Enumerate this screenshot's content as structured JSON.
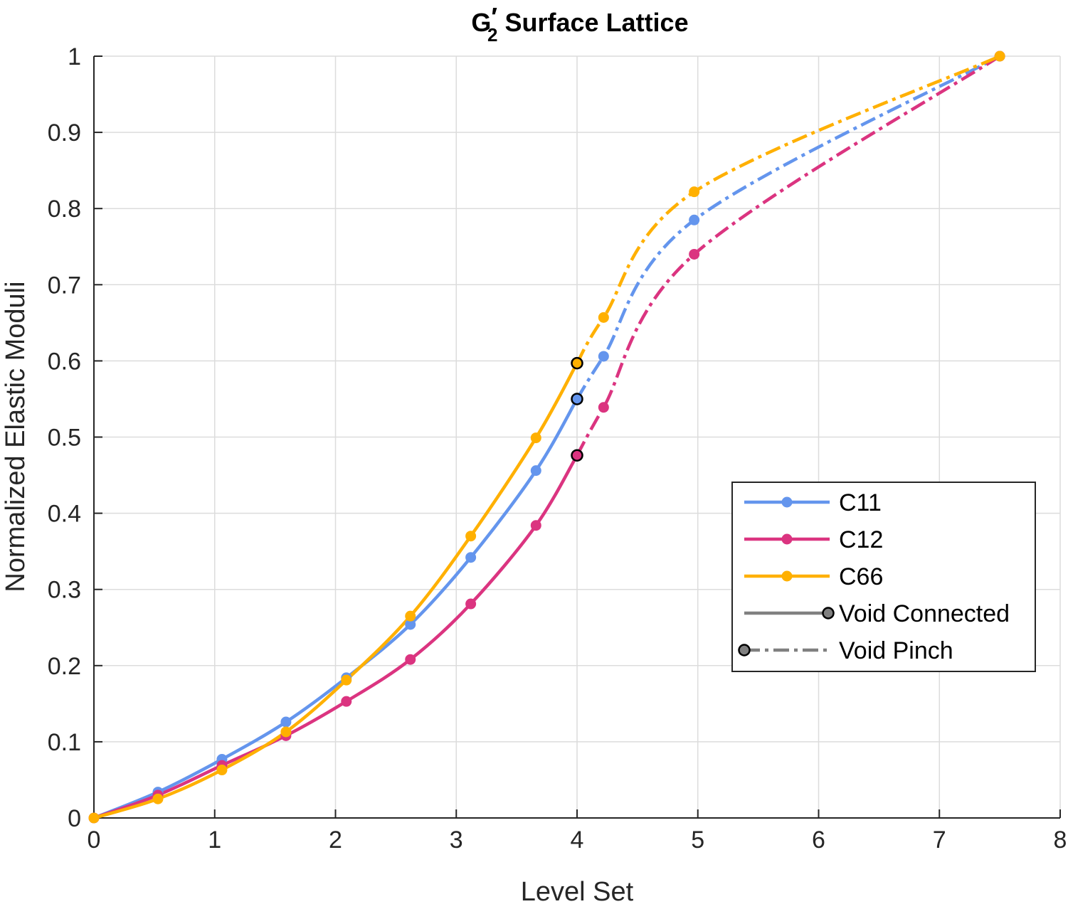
{
  "chart_data": {
    "type": "line",
    "title": {
      "main": "G",
      "prime": "′",
      "subscript": "2",
      "rest": " Surface Lattice"
    },
    "xlabel": "Level Set",
    "ylabel": "Normalized Elastic Moduli",
    "xlim": [
      0,
      8
    ],
    "ylim": [
      0,
      1
    ],
    "xticks": [
      0,
      1,
      2,
      3,
      4,
      5,
      6,
      7,
      8
    ],
    "yticks": [
      0,
      0.1,
      0.2,
      0.3,
      0.4,
      0.5,
      0.6,
      0.7,
      0.8,
      0.9,
      1
    ],
    "xtick_labels": [
      "0",
      "1",
      "2",
      "3",
      "4",
      "5",
      "6",
      "7",
      "8"
    ],
    "ytick_labels": [
      "0",
      "0.1",
      "0.2",
      "0.3",
      "0.4",
      "0.5",
      "0.6",
      "0.7",
      "0.8",
      "0.9",
      "1"
    ],
    "grid": true,
    "legend_position": "right",
    "series": [
      {
        "name": "C11",
        "color": "#6495ED",
        "connected": {
          "x": [
            0,
            0.53,
            1.06,
            1.59,
            2.09,
            2.62,
            3.12,
            3.66,
            4.0
          ],
          "y": [
            0,
            0.034,
            0.077,
            0.126,
            0.184,
            0.254,
            0.342,
            0.456,
            0.55
          ]
        },
        "pinch": {
          "x": [
            4.0,
            4.22,
            4.97,
            7.5
          ],
          "y": [
            0.55,
            0.606,
            0.785,
            1.0
          ]
        }
      },
      {
        "name": "C12",
        "color": "#DB3480",
        "connected": {
          "x": [
            0,
            0.53,
            1.06,
            1.59,
            2.09,
            2.62,
            3.12,
            3.66,
            4.0
          ],
          "y": [
            0,
            0.03,
            0.069,
            0.108,
            0.153,
            0.208,
            0.281,
            0.384,
            0.476
          ]
        },
        "pinch": {
          "x": [
            4.0,
            4.22,
            4.97,
            7.5
          ],
          "y": [
            0.476,
            0.539,
            0.74,
            1.0
          ]
        }
      },
      {
        "name": "C66",
        "color": "#FFB000",
        "connected": {
          "x": [
            0,
            0.53,
            1.06,
            1.59,
            2.09,
            2.62,
            3.12,
            3.66,
            4.0
          ],
          "y": [
            0,
            0.025,
            0.063,
            0.113,
            0.181,
            0.265,
            0.37,
            0.499,
            0.597
          ]
        },
        "pinch": {
          "x": [
            4.0,
            4.22,
            4.97,
            7.5
          ],
          "y": [
            0.597,
            0.657,
            0.822,
            1.0
          ]
        }
      }
    ],
    "legend": [
      {
        "label": "C11",
        "kind": "series",
        "color": "#6495ED"
      },
      {
        "label": "C12",
        "kind": "series",
        "color": "#DB3480"
      },
      {
        "label": "C66",
        "kind": "series",
        "color": "#FFB000"
      },
      {
        "label": "Void Connected",
        "kind": "solid",
        "color": "#808080"
      },
      {
        "label": "Void Pinch",
        "kind": "dashdot",
        "color": "#808080"
      }
    ],
    "transition_marker": {
      "x": 4.0,
      "edge_color": "#000000"
    }
  }
}
